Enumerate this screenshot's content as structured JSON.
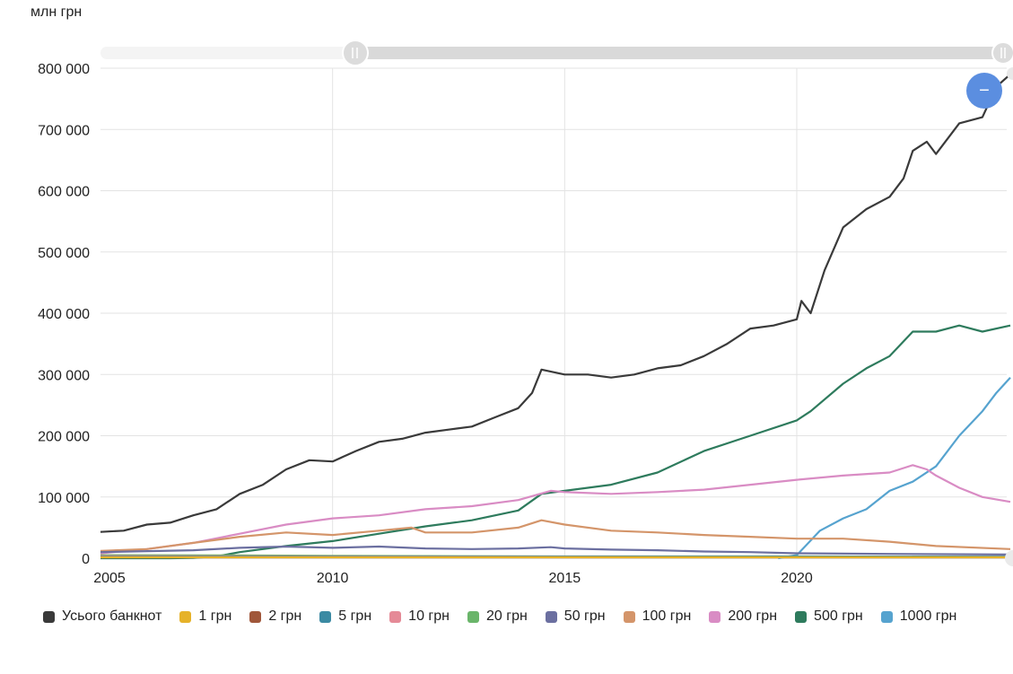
{
  "chart_data": {
    "type": "line",
    "unit_label": "млн грн",
    "yticks": [
      "0",
      "100 000",
      "200 000",
      "300 000",
      "400 000",
      "500 000",
      "600 000",
      "700 000",
      "800 000"
    ],
    "xticks": [
      "2005",
      "2010",
      "2015",
      "2020"
    ],
    "ylim": [
      0,
      800000
    ],
    "xlim": [
      2005.0,
      2024.6
    ],
    "grid": true,
    "legend_position": "bottom",
    "zoom_button_symbol": "−",
    "series": [
      {
        "name": "Усього банкнот",
        "color": "#3a3a3a",
        "x": [
          2005.0,
          2005.5,
          2006.0,
          2006.5,
          2007.0,
          2007.5,
          2008.0,
          2008.5,
          2009.0,
          2009.5,
          2010.0,
          2010.5,
          2011.0,
          2011.5,
          2012.0,
          2012.5,
          2013.0,
          2013.5,
          2014.0,
          2014.3,
          2014.5,
          2015.0,
          2015.5,
          2016.0,
          2016.5,
          2017.0,
          2017.5,
          2018.0,
          2018.5,
          2019.0,
          2019.5,
          2020.0,
          2020.1,
          2020.3,
          2020.6,
          2021.0,
          2021.5,
          2022.0,
          2022.3,
          2022.5,
          2022.8,
          2023.0,
          2023.5,
          2024.0,
          2024.3,
          2024.6
        ],
        "y": [
          43000,
          45000,
          55000,
          58000,
          70000,
          80000,
          105000,
          120000,
          145000,
          160000,
          158000,
          175000,
          190000,
          195000,
          205000,
          210000,
          215000,
          230000,
          245000,
          270000,
          308000,
          300000,
          300000,
          295000,
          300000,
          310000,
          315000,
          330000,
          350000,
          375000,
          380000,
          390000,
          420000,
          400000,
          470000,
          540000,
          570000,
          590000,
          620000,
          665000,
          680000,
          660000,
          710000,
          720000,
          770000,
          790000
        ]
      },
      {
        "name": "1 грн",
        "color": "#e6b229",
        "x": [
          2005.0,
          2024.6
        ],
        "y": [
          1500,
          1500
        ]
      },
      {
        "name": "2 грн",
        "color": "#a0573a",
        "x": [
          2005.0,
          2024.6
        ],
        "y": [
          1500,
          1500
        ]
      },
      {
        "name": "5 грн",
        "color": "#3b8aa3",
        "x": [
          2005.0,
          2010.0,
          2015.0,
          2020.0,
          2024.6
        ],
        "y": [
          2500,
          2500,
          2500,
          2500,
          2500
        ]
      },
      {
        "name": "10 грн",
        "color": "#e58a97",
        "x": [
          2005.0,
          2010.0,
          2015.0,
          2020.0,
          2024.6
        ],
        "y": [
          3500,
          3000,
          2500,
          2000,
          2000
        ]
      },
      {
        "name": "20 грн",
        "color": "#6ab56a",
        "x": [
          2005.0,
          2008.0,
          2010.0,
          2012.0,
          2015.0,
          2020.0,
          2024.6
        ],
        "y": [
          5000,
          4500,
          4000,
          3500,
          3000,
          3000,
          2500
        ]
      },
      {
        "name": "50 грн",
        "color": "#6b6fa0",
        "x": [
          2005.0,
          2007.0,
          2008.0,
          2009.0,
          2010.0,
          2011.0,
          2012.0,
          2013.0,
          2014.0,
          2014.7,
          2015.0,
          2016.0,
          2017.0,
          2018.0,
          2019.0,
          2020.0,
          2022.0,
          2024.6
        ],
        "y": [
          10000,
          13000,
          17000,
          19000,
          17000,
          19000,
          16000,
          15000,
          16000,
          18000,
          16000,
          14000,
          13000,
          11000,
          10000,
          8000,
          7000,
          6000
        ]
      },
      {
        "name": "100 грн",
        "color": "#d4956a",
        "x": [
          2005.0,
          2006.0,
          2007.0,
          2008.0,
          2009.0,
          2010.0,
          2011.0,
          2011.7,
          2012.0,
          2013.0,
          2014.0,
          2014.5,
          2015.0,
          2016.0,
          2017.0,
          2018.0,
          2019.0,
          2020.0,
          2021.0,
          2022.0,
          2023.0,
          2024.6
        ],
        "y": [
          12000,
          15000,
          25000,
          35000,
          42000,
          38000,
          45000,
          50000,
          42000,
          42000,
          50000,
          62000,
          55000,
          45000,
          42000,
          38000,
          35000,
          32000,
          32000,
          27000,
          20000,
          15000
        ]
      },
      {
        "name": "200 грн",
        "color": "#d98cc4",
        "x": [
          2005.0,
          2006.0,
          2007.0,
          2008.0,
          2009.0,
          2010.0,
          2011.0,
          2012.0,
          2013.0,
          2014.0,
          2014.7,
          2015.0,
          2016.0,
          2017.0,
          2018.0,
          2019.0,
          2020.0,
          2021.0,
          2022.0,
          2022.5,
          2022.8,
          2023.0,
          2023.5,
          2024.0,
          2024.6
        ],
        "y": [
          8000,
          15000,
          25000,
          40000,
          55000,
          65000,
          70000,
          80000,
          85000,
          95000,
          110000,
          108000,
          105000,
          108000,
          112000,
          120000,
          128000,
          135000,
          140000,
          152000,
          145000,
          135000,
          115000,
          100000,
          92000
        ]
      },
      {
        "name": "500 грн",
        "color": "#2e7b5d",
        "x": [
          2005.0,
          2006.5,
          2007.0,
          2007.5,
          2008.0,
          2009.0,
          2010.0,
          2011.0,
          2012.0,
          2013.0,
          2014.0,
          2014.5,
          2015.0,
          2015.5,
          2016.0,
          2017.0,
          2018.0,
          2019.0,
          2020.0,
          2020.3,
          2021.0,
          2021.5,
          2022.0,
          2022.5,
          2023.0,
          2023.5,
          2024.0,
          2024.6
        ],
        "y": [
          0,
          0,
          500,
          3000,
          10000,
          20000,
          28000,
          40000,
          52000,
          62000,
          78000,
          105000,
          110000,
          115000,
          120000,
          140000,
          175000,
          200000,
          225000,
          240000,
          285000,
          310000,
          330000,
          370000,
          370000,
          380000,
          370000,
          380000
        ]
      },
      {
        "name": "1000 грн",
        "color": "#56a3cf",
        "x": [
          2019.6,
          2020.0,
          2020.5,
          2021.0,
          2021.5,
          2022.0,
          2022.5,
          2023.0,
          2023.5,
          2024.0,
          2024.3,
          2024.6
        ],
        "y": [
          0,
          5000,
          45000,
          65000,
          80000,
          110000,
          125000,
          150000,
          200000,
          240000,
          270000,
          295000
        ]
      }
    ]
  }
}
